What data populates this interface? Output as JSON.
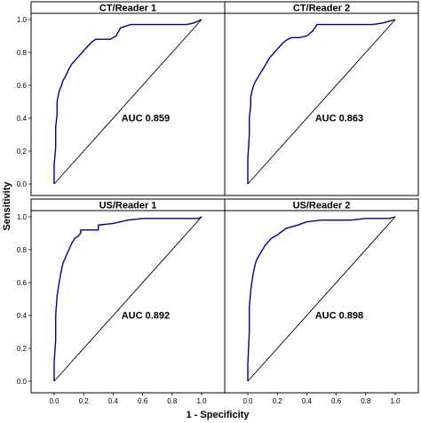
{
  "figure": {
    "xlabel": "1 - Specificity",
    "ylabel": "Sensitivity"
  },
  "colors": {
    "roc_line": "#00008b",
    "diagonal": "#000000",
    "strip_background": "#ffffff",
    "frame": "#000000"
  },
  "chart_data": [
    {
      "type": "line",
      "title": "CT/Reader 1",
      "annotation": "AUC 0.859",
      "xlim": [
        0,
        1
      ],
      "ylim": [
        0,
        1
      ],
      "x_ticks": [
        "0.0",
        "0.2",
        "0.4",
        "0.6",
        "0.8",
        "1.0"
      ],
      "y_ticks": [
        "0.0",
        "0.2",
        "0.4",
        "0.6",
        "0.8",
        "1.0"
      ],
      "series": [
        {
          "x": [
            0,
            0,
            0.01,
            0.01,
            0.02,
            0.02,
            0.03,
            0.04,
            0.05,
            0.06,
            0.08,
            0.1,
            0.12,
            0.14,
            0.17,
            0.19,
            0.22,
            0.25,
            0.28,
            0.32,
            0.38,
            0.42,
            0.45,
            0.52,
            0.6,
            0.7,
            0.8,
            0.9,
            0.95,
            1.0
          ],
          "y": [
            0,
            0.12,
            0.22,
            0.35,
            0.42,
            0.5,
            0.55,
            0.58,
            0.6,
            0.63,
            0.66,
            0.7,
            0.73,
            0.75,
            0.78,
            0.8,
            0.83,
            0.86,
            0.88,
            0.88,
            0.88,
            0.9,
            0.95,
            0.97,
            0.97,
            0.97,
            0.97,
            0.97,
            0.98,
            1.0
          ]
        },
        {
          "x": [
            0,
            1
          ],
          "y": [
            0,
            1
          ]
        }
      ]
    },
    {
      "type": "line",
      "title": "CT/Reader 2",
      "annotation": "AUC 0.863",
      "xlim": [
        0,
        1
      ],
      "ylim": [
        0,
        1
      ],
      "x_ticks": [
        "0.0",
        "0.2",
        "0.4",
        "0.6",
        "0.8",
        "1.0"
      ],
      "y_ticks": [
        "0.0",
        "0.2",
        "0.4",
        "0.6",
        "0.8",
        "1.0"
      ],
      "series": [
        {
          "x": [
            0,
            0,
            0.01,
            0.01,
            0.02,
            0.02,
            0.03,
            0.04,
            0.05,
            0.07,
            0.09,
            0.11,
            0.13,
            0.15,
            0.18,
            0.21,
            0.24,
            0.27,
            0.3,
            0.35,
            0.4,
            0.44,
            0.47,
            0.55,
            0.65,
            0.75,
            0.85,
            0.92,
            0.96,
            1.0
          ],
          "y": [
            0,
            0.15,
            0.3,
            0.4,
            0.48,
            0.53,
            0.57,
            0.6,
            0.62,
            0.65,
            0.68,
            0.71,
            0.74,
            0.77,
            0.8,
            0.83,
            0.86,
            0.88,
            0.89,
            0.89,
            0.9,
            0.93,
            0.97,
            0.97,
            0.97,
            0.97,
            0.97,
            0.98,
            0.99,
            1.0
          ]
        },
        {
          "x": [
            0,
            1
          ],
          "y": [
            0,
            1
          ]
        }
      ]
    },
    {
      "type": "line",
      "title": "US/Reader 1",
      "annotation": "AUC 0.892",
      "xlim": [
        0,
        1
      ],
      "ylim": [
        0,
        1
      ],
      "x_ticks": [
        "0.0",
        "0.2",
        "0.4",
        "0.6",
        "0.8",
        "1.0"
      ],
      "y_ticks": [
        "0.0",
        "0.2",
        "0.4",
        "0.6",
        "0.8",
        "1.0"
      ],
      "series": [
        {
          "x": [
            0,
            0,
            0.01,
            0.01,
            0.02,
            0.03,
            0.04,
            0.05,
            0.06,
            0.08,
            0.1,
            0.12,
            0.14,
            0.16,
            0.18,
            0.18,
            0.25,
            0.3,
            0.3,
            0.4,
            0.5,
            0.6,
            0.7,
            0.8,
            0.9,
            0.98,
            1.0
          ],
          "y": [
            0,
            0.12,
            0.25,
            0.4,
            0.52,
            0.58,
            0.63,
            0.68,
            0.72,
            0.76,
            0.8,
            0.84,
            0.87,
            0.88,
            0.9,
            0.92,
            0.92,
            0.92,
            0.95,
            0.96,
            0.98,
            0.99,
            0.99,
            0.99,
            0.99,
            0.99,
            1.0
          ]
        },
        {
          "x": [
            0,
            1
          ],
          "y": [
            0,
            1
          ]
        }
      ]
    },
    {
      "type": "line",
      "title": "US/Reader 2",
      "annotation": "AUC 0.898",
      "xlim": [
        0,
        1
      ],
      "ylim": [
        0,
        1
      ],
      "x_ticks": [
        "0.0",
        "0.2",
        "0.4",
        "0.6",
        "0.8",
        "1.0"
      ],
      "y_ticks": [
        "0.0",
        "0.2",
        "0.4",
        "0.6",
        "0.8",
        "1.0"
      ],
      "series": [
        {
          "x": [
            0,
            0,
            0.01,
            0.01,
            0.02,
            0.03,
            0.04,
            0.05,
            0.06,
            0.08,
            0.1,
            0.12,
            0.14,
            0.16,
            0.18,
            0.2,
            0.23,
            0.26,
            0.3,
            0.34,
            0.4,
            0.5,
            0.6,
            0.7,
            0.8,
            0.9,
            0.96,
            1.0
          ],
          "y": [
            0,
            0.1,
            0.3,
            0.45,
            0.55,
            0.62,
            0.67,
            0.71,
            0.74,
            0.77,
            0.8,
            0.83,
            0.85,
            0.87,
            0.88,
            0.89,
            0.91,
            0.93,
            0.94,
            0.95,
            0.97,
            0.98,
            0.98,
            0.98,
            0.99,
            0.99,
            0.99,
            1.0
          ]
        },
        {
          "x": [
            0,
            1
          ],
          "y": [
            0,
            1
          ]
        }
      ]
    }
  ]
}
